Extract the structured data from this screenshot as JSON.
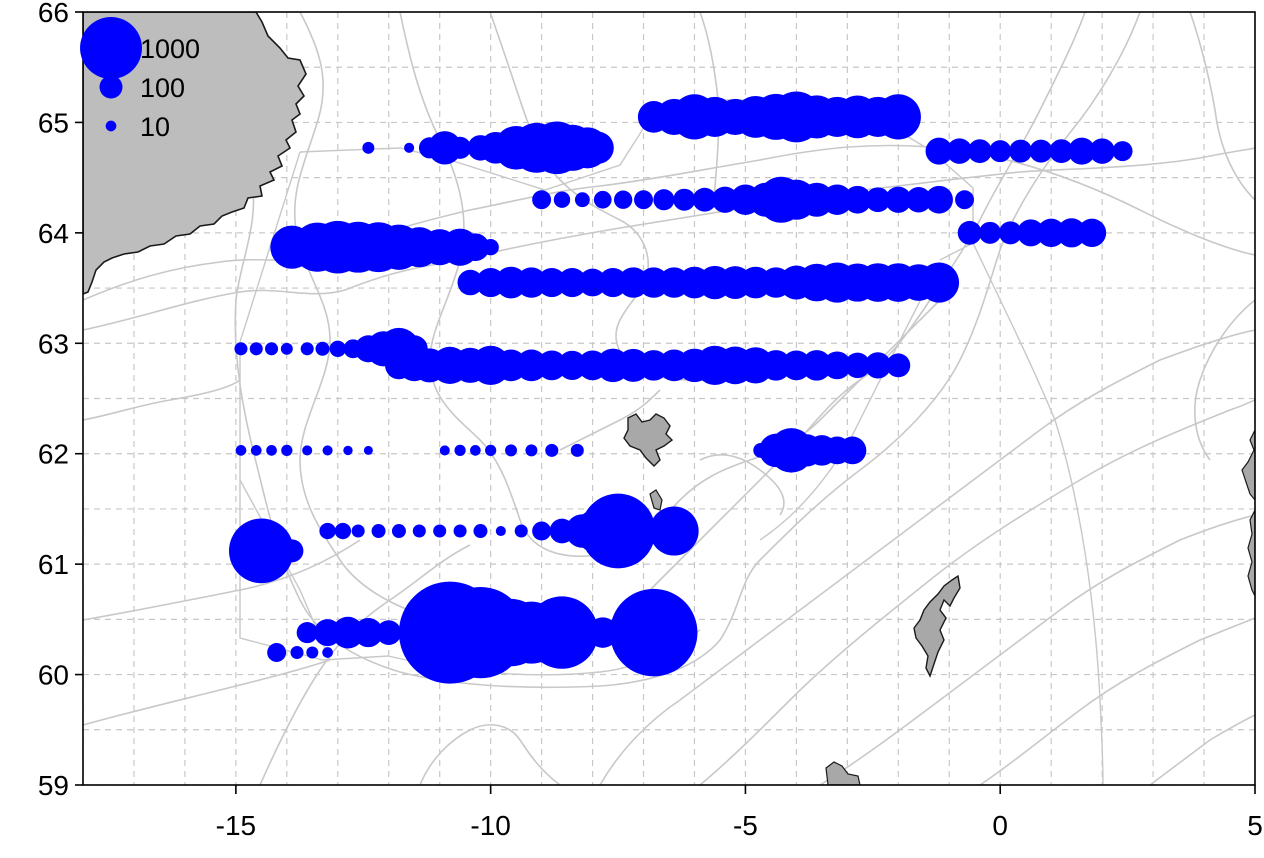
{
  "chart_data": {
    "type": "scatter",
    "title": "",
    "xlabel": "",
    "ylabel": "",
    "xlim": [
      -18.0,
      5.0
    ],
    "ylim": [
      59.0,
      66.0
    ],
    "x_ticks": [
      "-15",
      "-10",
      "-5",
      "0",
      "5"
    ],
    "y_ticks": [
      "59",
      "60",
      "61",
      "62",
      "63",
      "64",
      "65",
      "66"
    ],
    "grid": "dashed at 1 degree longitude and 0.5 degree latitude",
    "colors": {
      "bubble": "#0000ff",
      "land": "#bdbdbd",
      "coast": "#1a1a1a",
      "contour": "#c8c8c8",
      "grid": "#c8c8c8"
    },
    "legend": {
      "placement": "top-left",
      "entries": [
        {
          "label": "1000",
          "value": 1000
        },
        {
          "label": "100",
          "value": 100
        },
        {
          "label": "10",
          "value": 10
        }
      ]
    },
    "transects": [
      {
        "lat": 65.05,
        "points": [
          [
            -6.8,
            220
          ],
          [
            -6.4,
            300
          ],
          [
            -6.0,
            500
          ],
          [
            -5.6,
            380
          ],
          [
            -5.2,
            300
          ],
          [
            -4.8,
            420
          ],
          [
            -4.4,
            520
          ],
          [
            -4.0,
            650
          ],
          [
            -3.6,
            450
          ],
          [
            -3.2,
            380
          ],
          [
            -2.8,
            440
          ],
          [
            -2.4,
            380
          ],
          [
            -2.0,
            500
          ]
        ]
      },
      {
        "lat": 64.77,
        "points": [
          [
            -12.4,
            15
          ],
          [
            -11.6,
            8
          ],
          [
            -11.2,
            80
          ],
          [
            -10.9,
            250
          ],
          [
            -10.6,
            90
          ],
          [
            -10.2,
            130
          ],
          [
            -9.9,
            220
          ],
          [
            -9.5,
            460
          ],
          [
            -9.1,
            620
          ],
          [
            -8.7,
            700
          ],
          [
            -8.4,
            520
          ],
          [
            -8.1,
            400
          ],
          [
            -7.9,
            230
          ]
        ]
      },
      {
        "lat": 64.74,
        "points": [
          [
            -1.2,
            150
          ],
          [
            -0.8,
            130
          ],
          [
            -0.4,
            110
          ],
          [
            0.0,
            90
          ],
          [
            0.4,
            100
          ],
          [
            0.8,
            100
          ],
          [
            1.2,
            110
          ],
          [
            1.6,
            150
          ],
          [
            2.0,
            130
          ],
          [
            2.4,
            70
          ]
        ]
      },
      {
        "lat": 64.3,
        "points": [
          [
            -9.0,
            60
          ],
          [
            -8.6,
            40
          ],
          [
            -8.2,
            30
          ],
          [
            -7.8,
            50
          ],
          [
            -7.4,
            55
          ],
          [
            -7.0,
            60
          ],
          [
            -6.6,
            80
          ],
          [
            -6.2,
            90
          ],
          [
            -5.8,
            110
          ],
          [
            -5.4,
            140
          ],
          [
            -5.0,
            200
          ],
          [
            -4.6,
            260
          ],
          [
            -4.3,
            520
          ],
          [
            -4.0,
            380
          ],
          [
            -3.6,
            260
          ],
          [
            -3.2,
            200
          ],
          [
            -2.8,
            160
          ],
          [
            -2.4,
            120
          ],
          [
            -2.0,
            140
          ],
          [
            -1.6,
            130
          ],
          [
            -1.2,
            160
          ],
          [
            -0.7,
            60
          ]
        ]
      },
      {
        "lat": 64.0,
        "points": [
          [
            -0.6,
            110
          ],
          [
            -0.2,
            90
          ],
          [
            0.2,
            100
          ],
          [
            0.6,
            150
          ],
          [
            1.0,
            170
          ],
          [
            1.4,
            180
          ],
          [
            1.8,
            170
          ]
        ]
      },
      {
        "lat": 63.87,
        "points": [
          [
            -13.9,
            450
          ],
          [
            -13.4,
            600
          ],
          [
            -13.0,
            700
          ],
          [
            -12.6,
            650
          ],
          [
            -12.2,
            620
          ],
          [
            -11.8,
            500
          ],
          [
            -11.4,
            380
          ],
          [
            -11.0,
            300
          ],
          [
            -10.6,
            320
          ],
          [
            -10.3,
            160
          ],
          [
            -10.0,
            40
          ]
        ]
      },
      {
        "lat": 63.55,
        "points": [
          [
            -10.4,
            130
          ],
          [
            -10.0,
            180
          ],
          [
            -9.6,
            220
          ],
          [
            -9.2,
            200
          ],
          [
            -8.8,
            180
          ],
          [
            -8.4,
            180
          ],
          [
            -8.0,
            160
          ],
          [
            -7.6,
            180
          ],
          [
            -7.2,
            200
          ],
          [
            -6.8,
            200
          ],
          [
            -6.4,
            200
          ],
          [
            -6.0,
            220
          ],
          [
            -5.6,
            250
          ],
          [
            -5.2,
            240
          ],
          [
            -4.8,
            220
          ],
          [
            -4.4,
            200
          ],
          [
            -4.0,
            260
          ],
          [
            -3.6,
            330
          ],
          [
            -3.2,
            380
          ],
          [
            -2.8,
            340
          ],
          [
            -2.4,
            350
          ],
          [
            -2.0,
            350
          ],
          [
            -1.6,
            310
          ],
          [
            -1.2,
            380
          ]
        ]
      },
      {
        "lat": 62.95,
        "points": [
          [
            -14.9,
            20
          ],
          [
            -14.6,
            20
          ],
          [
            -14.3,
            20
          ],
          [
            -14.0,
            15
          ],
          [
            -13.6,
            20
          ],
          [
            -13.3,
            25
          ],
          [
            -13.0,
            40
          ],
          [
            -12.7,
            60
          ],
          [
            -12.4,
            150
          ],
          [
            -12.1,
            280
          ],
          [
            -11.8,
            420
          ],
          [
            -11.5,
            150
          ]
        ]
      },
      {
        "lat": 62.8,
        "points": [
          [
            -11.8,
            160
          ],
          [
            -11.5,
            220
          ],
          [
            -11.2,
            260
          ],
          [
            -10.8,
            320
          ],
          [
            -10.4,
            280
          ],
          [
            -10.0,
            360
          ],
          [
            -9.6,
            220
          ],
          [
            -9.2,
            220
          ],
          [
            -8.8,
            190
          ],
          [
            -8.4,
            180
          ],
          [
            -8.0,
            190
          ],
          [
            -7.6,
            250
          ],
          [
            -7.2,
            240
          ],
          [
            -6.8,
            200
          ],
          [
            -6.4,
            220
          ],
          [
            -6.0,
            250
          ],
          [
            -5.6,
            360
          ],
          [
            -5.2,
            330
          ],
          [
            -4.8,
            300
          ],
          [
            -4.4,
            200
          ],
          [
            -4.0,
            190
          ],
          [
            -3.6,
            200
          ],
          [
            -3.2,
            160
          ],
          [
            -2.8,
            130
          ],
          [
            -2.4,
            140
          ],
          [
            -2.0,
            110
          ]
        ]
      },
      {
        "lat": 62.03,
        "points": [
          [
            -14.9,
            10
          ],
          [
            -14.6,
            10
          ],
          [
            -14.3,
            10
          ],
          [
            -14.0,
            12
          ],
          [
            -13.6,
            8
          ],
          [
            -13.2,
            8
          ],
          [
            -12.8,
            6
          ],
          [
            -12.4,
            5
          ],
          [
            -10.9,
            8
          ],
          [
            -10.6,
            12
          ],
          [
            -10.3,
            10
          ],
          [
            -10.0,
            12
          ],
          [
            -9.6,
            15
          ],
          [
            -9.2,
            15
          ],
          [
            -8.8,
            20
          ],
          [
            -8.3,
            20
          ]
        ]
      },
      {
        "lat": 62.03,
        "points": [
          [
            -4.7,
            30
          ],
          [
            -4.4,
            250
          ],
          [
            -4.1,
            480
          ],
          [
            -3.8,
            230
          ],
          [
            -3.5,
            200
          ],
          [
            -3.2,
            160
          ],
          [
            -2.9,
            160
          ]
        ]
      },
      {
        "lat": 61.12,
        "points": [
          [
            -14.5,
            1100
          ],
          [
            -13.9,
            100
          ]
        ]
      },
      {
        "lat": 61.3,
        "points": [
          [
            -13.2,
            40
          ],
          [
            -12.9,
            40
          ],
          [
            -12.6,
            20
          ],
          [
            -12.2,
            25
          ],
          [
            -11.8,
            25
          ],
          [
            -11.4,
            20
          ],
          [
            -11.0,
            20
          ],
          [
            -10.6,
            20
          ],
          [
            -10.2,
            25
          ],
          [
            -9.8,
            8
          ],
          [
            -9.4,
            20
          ],
          [
            -9.0,
            60
          ],
          [
            -8.6,
            120
          ],
          [
            -8.2,
            250
          ],
          [
            -7.9,
            480
          ],
          [
            -7.5,
            1500
          ],
          [
            -6.4,
            600
          ]
        ]
      },
      {
        "lat": 60.38,
        "points": [
          [
            -13.6,
            80
          ],
          [
            -13.2,
            150
          ],
          [
            -12.8,
            220
          ],
          [
            -12.4,
            180
          ],
          [
            -12.0,
            120
          ],
          [
            -11.6,
            80
          ],
          [
            -10.8,
            2900
          ],
          [
            -10.2,
            2300
          ],
          [
            -9.6,
            1200
          ],
          [
            -9.2,
            1000
          ],
          [
            -8.6,
            1400
          ],
          [
            -7.8,
            200
          ],
          [
            -6.8,
            2100
          ]
        ]
      },
      {
        "lat": 60.2,
        "points": [
          [
            -14.2,
            60
          ],
          [
            -13.8,
            20
          ],
          [
            -13.5,
            15
          ],
          [
            -13.2,
            10
          ]
        ]
      }
    ]
  }
}
